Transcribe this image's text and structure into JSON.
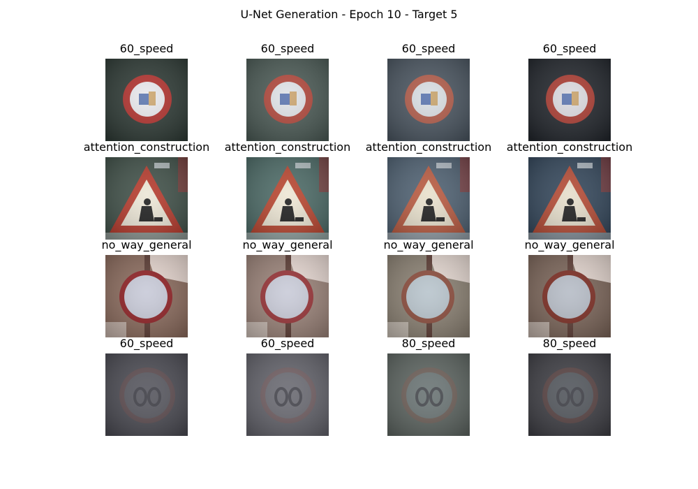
{
  "figure": {
    "title": "U-Net Generation - Epoch 10 - Target 5"
  },
  "rows": [
    {
      "sign": "speed-limit-sign",
      "cells": [
        {
          "label": "60_speed",
          "bg": "#2e3a35",
          "ring": "#b0302c",
          "fill": "#e8e8ec"
        },
        {
          "label": "60_speed",
          "bg": "#4b5a55",
          "ring": "#b0463a",
          "fill": "#dfe2e6"
        },
        {
          "label": "60_speed",
          "bg": "#4a5560",
          "ring": "#b05a48",
          "fill": "#d8dde2"
        },
        {
          "label": "60_speed",
          "bg": "#22262c",
          "ring": "#a83a30",
          "fill": "#dad9de"
        }
      ]
    },
    {
      "sign": "construction-warning-sign",
      "cells": [
        {
          "label": "attention_construction",
          "bg": "#405048",
          "ring": "#b53a2c",
          "fill": "#ece6d6"
        },
        {
          "label": "attention_construction",
          "bg": "#4c6a66",
          "ring": "#b8452f",
          "fill": "#ede6d4"
        },
        {
          "label": "attention_construction",
          "bg": "#4f6172",
          "ring": "#b85a40",
          "fill": "#e8e0cc"
        },
        {
          "label": "attention_construction",
          "bg": "#33465a",
          "ring": "#b34a34",
          "fill": "#e6decb"
        }
      ]
    },
    {
      "sign": "no-entry-sign",
      "cells": [
        {
          "label": "no_way_general",
          "bg": "#8a6a5c",
          "ring": "#8e1e22",
          "fill": "#c8cad8"
        },
        {
          "label": "no_way_general",
          "bg": "#9a8278",
          "ring": "#963034",
          "fill": "#c9cbd8"
        },
        {
          "label": "no_way_general",
          "bg": "#8a8072",
          "ring": "#8a4a3a",
          "fill": "#b8c4cc"
        },
        {
          "label": "no_way_general",
          "bg": "#7a6458",
          "ring": "#7a2a20",
          "fill": "#b6bcc6"
        }
      ]
    },
    {
      "sign": "faded-speed-sign",
      "cells": [
        {
          "label": "60_speed",
          "bg": "#4a4a52",
          "ring": "#6a4a4a",
          "fill": "#56565e"
        },
        {
          "label": "60_speed",
          "bg": "#62626a",
          "ring": "#7a5a5a",
          "fill": "#6a6a72"
        },
        {
          "label": "80_speed",
          "bg": "#5c6460",
          "ring": "#7a5a50",
          "fill": "#6a7474"
        },
        {
          "label": "80_speed",
          "bg": "#3e3e44",
          "ring": "#6a4440",
          "fill": "#52565c"
        }
      ]
    }
  ]
}
